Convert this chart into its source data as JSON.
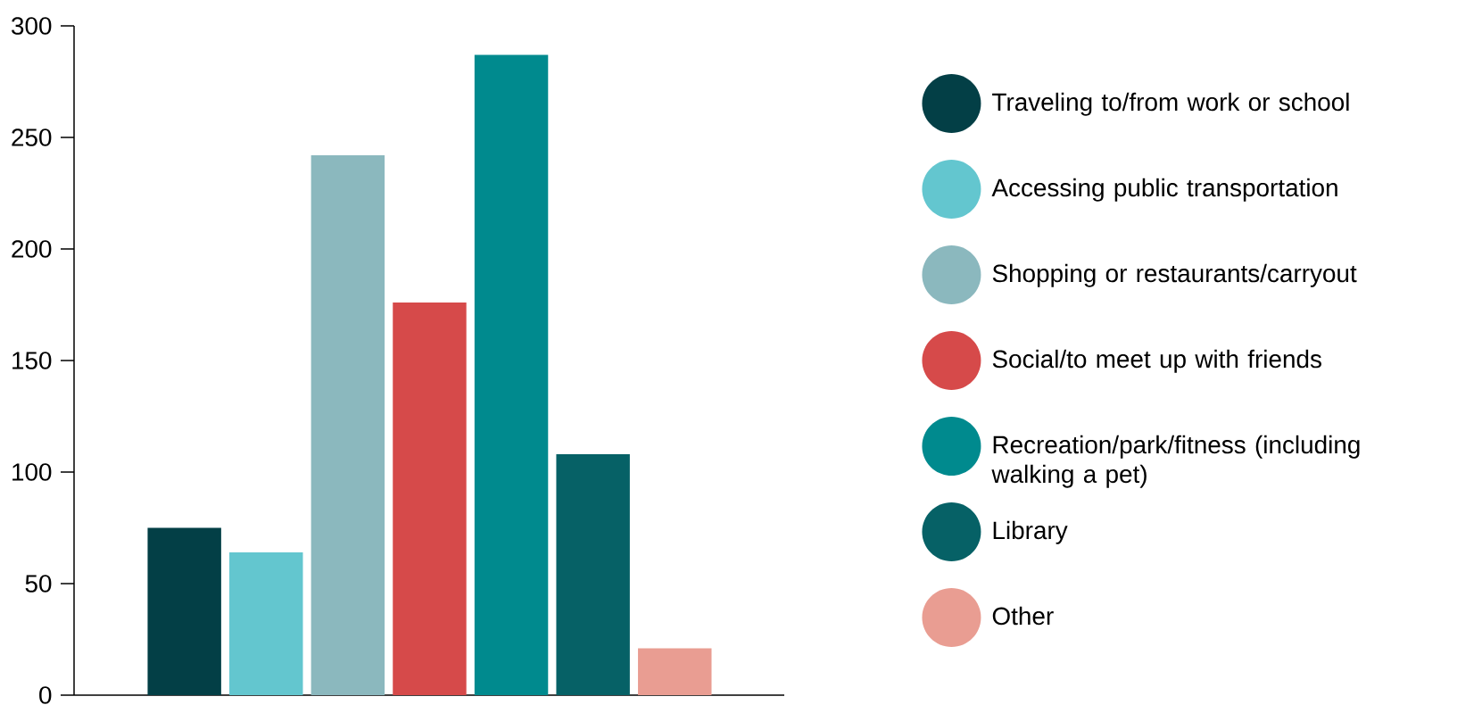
{
  "chart_data": {
    "type": "bar",
    "stacked": true,
    "categories": [
      null,
      null,
      null,
      null,
      null,
      null,
      null
    ],
    "series": [
      {
        "name": "Traveling to/from work or school",
        "color": "#033f46",
        "values": [
          75,
          null,
          null,
          null,
          null,
          null,
          null
        ]
      },
      {
        "name": "Accessing public transportation",
        "color": "#63c6cf",
        "values": [
          null,
          64,
          null,
          null,
          null,
          null,
          null
        ]
      },
      {
        "name": "Shopping or restaurants/carryout",
        "color": "#8bb8be",
        "values": [
          null,
          null,
          242,
          null,
          null,
          null,
          null
        ]
      },
      {
        "name": "Social/to meet up with friends",
        "color": "#d64a4a",
        "values": [
          null,
          null,
          null,
          176,
          null,
          null,
          null
        ]
      },
      {
        "name": "Recreation/park/fitness (including walking a pet)",
        "color": "#008a8e",
        "values": [
          null,
          null,
          null,
          null,
          287,
          null,
          null
        ]
      },
      {
        "name": "Library",
        "color": "#066166",
        "values": [
          null,
          null,
          null,
          null,
          null,
          108,
          null
        ]
      },
      {
        "name": "Other",
        "color": "#e99d92",
        "values": [
          null,
          null,
          null,
          null,
          null,
          null,
          21
        ]
      }
    ],
    "ylim": [
      0,
      300
    ],
    "yticks": [
      0,
      50,
      100,
      150,
      200,
      250,
      300
    ],
    "grid": false,
    "legend": "right"
  }
}
